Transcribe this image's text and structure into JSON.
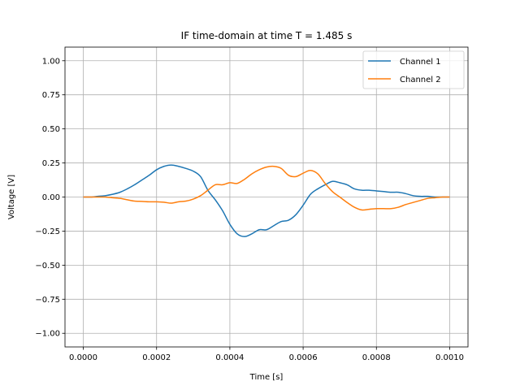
{
  "chart_data": {
    "type": "line",
    "title": "IF time-domain at time T = 1.485 s",
    "xlabel": "Time [s]",
    "ylabel": "Voltage [V]",
    "xlim": [
      -5e-05,
      0.00105
    ],
    "ylim": [
      -1.1,
      1.1
    ],
    "grid": true,
    "legend_position": "top-right",
    "x_ticks": [
      0,
      0.0002,
      0.0004,
      0.0006,
      0.0008,
      0.001
    ],
    "x_tick_labels": [
      "0.0000",
      "0.0002",
      "0.0004",
      "0.0006",
      "0.0008",
      "0.0010"
    ],
    "y_ticks": [
      -1.0,
      -0.75,
      -0.5,
      -0.25,
      0.0,
      0.25,
      0.5,
      0.75,
      1.0
    ],
    "y_tick_labels": [
      "−1.00",
      "−0.75",
      "−0.50",
      "−0.25",
      "0.00",
      "0.25",
      "0.50",
      "0.75",
      "1.00"
    ],
    "series": [
      {
        "name": "Channel 1",
        "color": "#1f77b4",
        "x": [
          0,
          2e-05,
          4e-05,
          6e-05,
          8e-05,
          0.0001,
          0.00012,
          0.00014,
          0.00016,
          0.00018,
          0.0002,
          0.00022,
          0.00024,
          0.00026,
          0.00028,
          0.0003,
          0.00032,
          0.00034,
          0.00036,
          0.00038,
          0.0004,
          0.00042,
          0.00044,
          0.00046,
          0.00048,
          0.0005,
          0.00052,
          0.00054,
          0.00056,
          0.00058,
          0.0006,
          0.00062,
          0.00064,
          0.00066,
          0.00068,
          0.0007,
          0.00072,
          0.00074,
          0.00076,
          0.00078,
          0.0008,
          0.00082,
          0.00084,
          0.00086,
          0.00088,
          0.0009,
          0.00092,
          0.00094,
          0.00096,
          0.00098,
          0.001
        ],
        "values": [
          0.0,
          0.0,
          0.005,
          0.01,
          0.02,
          0.035,
          0.06,
          0.09,
          0.125,
          0.16,
          0.2,
          0.225,
          0.235,
          0.225,
          0.21,
          0.19,
          0.15,
          0.05,
          -0.02,
          -0.1,
          -0.2,
          -0.27,
          -0.29,
          -0.27,
          -0.24,
          -0.24,
          -0.21,
          -0.18,
          -0.17,
          -0.13,
          -0.06,
          0.02,
          0.06,
          0.09,
          0.115,
          0.105,
          0.09,
          0.06,
          0.05,
          0.05,
          0.045,
          0.04,
          0.035,
          0.035,
          0.025,
          0.01,
          0.005,
          0.005,
          0.0,
          0.0,
          0.0
        ]
      },
      {
        "name": "Channel 2",
        "color": "#ff7f0e",
        "x": [
          0,
          2e-05,
          4e-05,
          6e-05,
          8e-05,
          0.0001,
          0.00012,
          0.00014,
          0.00016,
          0.00018,
          0.0002,
          0.00022,
          0.00024,
          0.00026,
          0.00028,
          0.0003,
          0.00032,
          0.00034,
          0.00036,
          0.00038,
          0.0004,
          0.00042,
          0.00044,
          0.00046,
          0.00048,
          0.0005,
          0.00052,
          0.00054,
          0.00056,
          0.00058,
          0.0006,
          0.00062,
          0.00064,
          0.00066,
          0.00068,
          0.0007,
          0.00072,
          0.00074,
          0.00076,
          0.00078,
          0.0008,
          0.00082,
          0.00084,
          0.00086,
          0.00088,
          0.0009,
          0.00092,
          0.00094,
          0.00096,
          0.00098,
          0.001
        ],
        "values": [
          0.0,
          0.0,
          0.0,
          0.0,
          -0.005,
          -0.01,
          -0.02,
          -0.03,
          -0.032,
          -0.035,
          -0.035,
          -0.038,
          -0.045,
          -0.035,
          -0.03,
          -0.015,
          0.01,
          0.05,
          0.09,
          0.09,
          0.105,
          0.1,
          0.13,
          0.17,
          0.2,
          0.22,
          0.225,
          0.21,
          0.16,
          0.15,
          0.175,
          0.195,
          0.17,
          0.1,
          0.04,
          0.0,
          -0.04,
          -0.075,
          -0.095,
          -0.09,
          -0.085,
          -0.085,
          -0.085,
          -0.075,
          -0.055,
          -0.04,
          -0.025,
          -0.01,
          -0.005,
          0.0,
          0.0
        ]
      }
    ]
  }
}
